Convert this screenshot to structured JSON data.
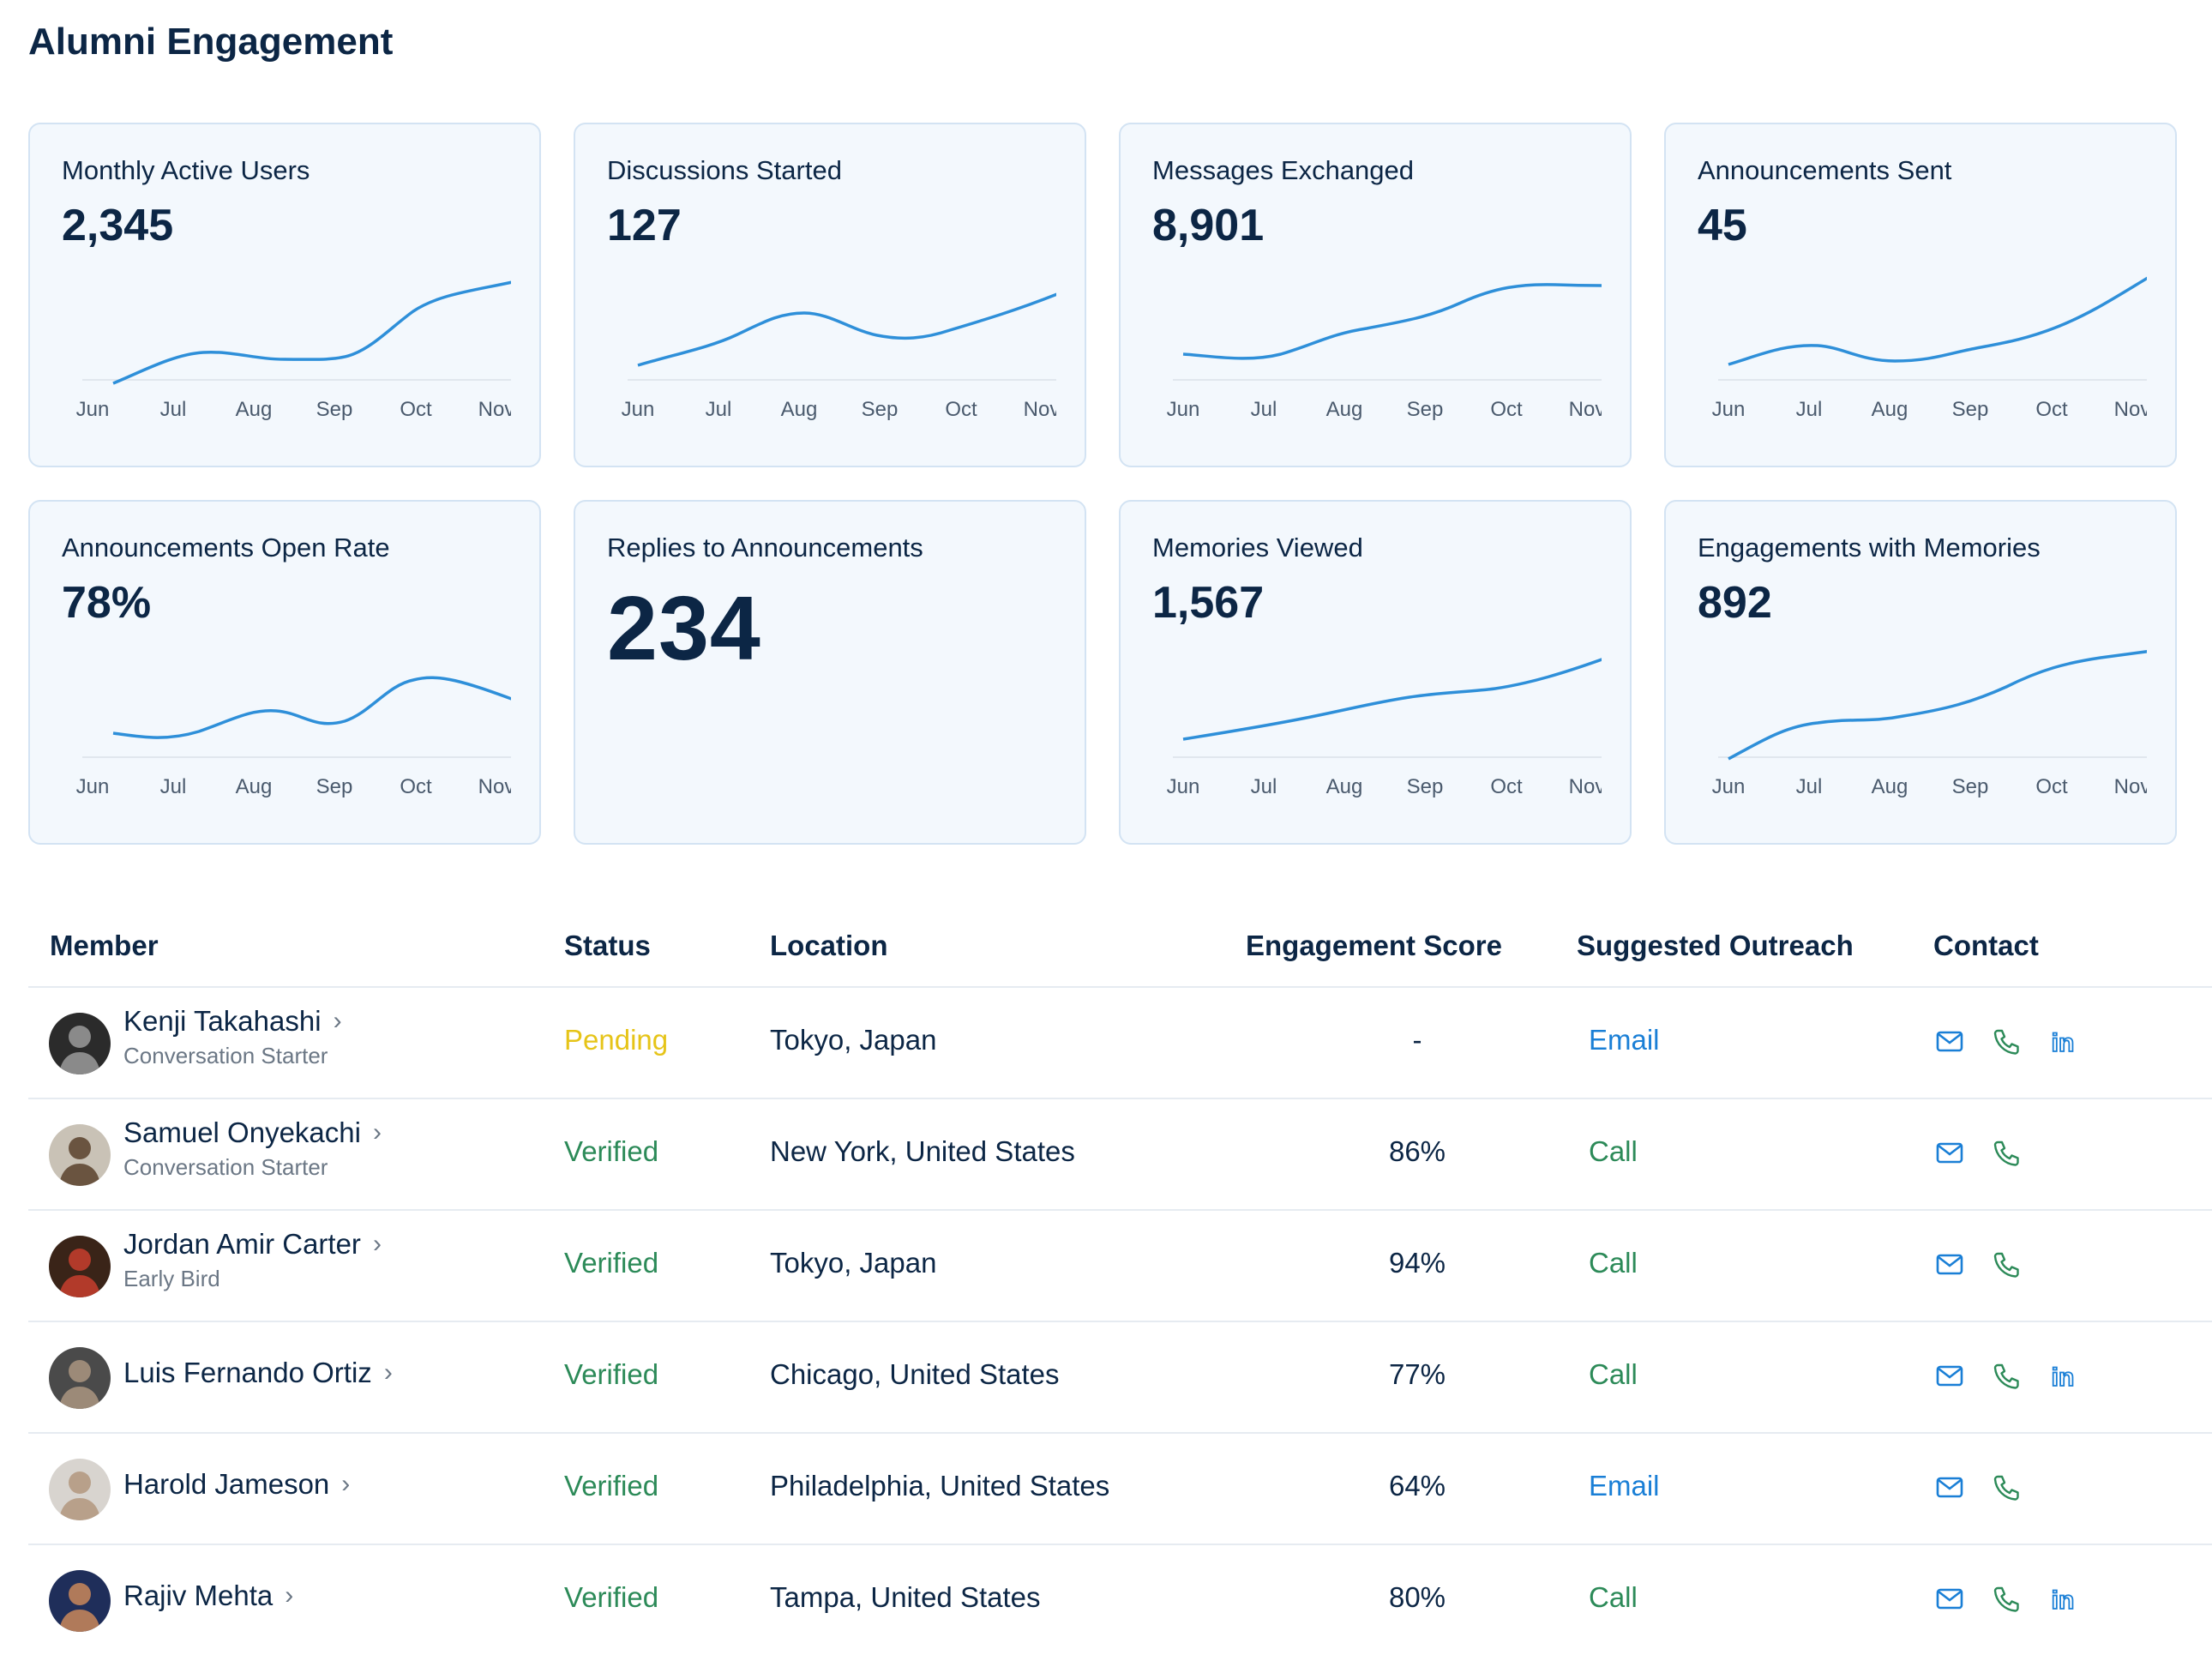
{
  "page": {
    "title": "Alumni Engagement"
  },
  "months": [
    "Jun",
    "Jul",
    "Aug",
    "Sep",
    "Oct",
    "Nov"
  ],
  "colors": {
    "accent": "#2e8fd9",
    "pending": "#e6c418",
    "verified": "#2c8a58",
    "email": "#1a7fd6",
    "call": "#2c8a58"
  },
  "cards": [
    {
      "title": "Monthly Active Users",
      "value": "2,345"
    },
    {
      "title": "Discussions Started",
      "value": "127"
    },
    {
      "title": "Messages Exchanged",
      "value": "8,901"
    },
    {
      "title": "Announcements Sent",
      "value": "45"
    },
    {
      "title": "Announcements Open Rate",
      "value": "78%"
    },
    {
      "title": "Replies to Announcements",
      "value": "234"
    },
    {
      "title": "Memories Viewed",
      "value": "1,567"
    },
    {
      "title": "Engagements with Memories",
      "value": "892"
    }
  ],
  "table": {
    "headers": {
      "member": "Member",
      "status": "Status",
      "location": "Location",
      "score": "Engagement Score",
      "outreach": "Suggested Outreach",
      "contact": "Contact"
    },
    "rows": [
      {
        "name": "Kenji Takahashi",
        "role": "Conversation Starter",
        "status": "Pending",
        "location": "Tokyo, Japan",
        "score": "-",
        "outreach": "Email",
        "contacts": [
          "mail-icon",
          "phone-icon",
          "linkedin-icon"
        ]
      },
      {
        "name": "Samuel Onyekachi",
        "role": "Conversation Starter",
        "status": "Verified",
        "location": "New York, United States",
        "score": "86%",
        "outreach": "Call",
        "contacts": [
          "mail-icon",
          "phone-icon"
        ]
      },
      {
        "name": "Jordan Amir Carter",
        "role": "Early Bird",
        "status": "Verified",
        "location": "Tokyo, Japan",
        "score": "94%",
        "outreach": "Call",
        "contacts": [
          "mail-icon",
          "phone-icon"
        ]
      },
      {
        "name": "Luis Fernando Ortiz",
        "role": "",
        "status": "Verified",
        "location": "Chicago, United States",
        "score": "77%",
        "outreach": "Call",
        "contacts": [
          "mail-icon",
          "phone-icon",
          "linkedin-icon"
        ]
      },
      {
        "name": "Harold Jameson",
        "role": "",
        "status": "Verified",
        "location": "Philadelphia, United States",
        "score": "64%",
        "outreach": "Email",
        "contacts": [
          "mail-icon",
          "phone-icon"
        ]
      },
      {
        "name": "Rajiv Mehta",
        "role": "",
        "status": "Verified",
        "location": "Tampa, United States",
        "score": "80%",
        "outreach": "Call",
        "contacts": [
          "mail-icon",
          "phone-icon",
          "linkedin-icon"
        ]
      }
    ]
  }
}
